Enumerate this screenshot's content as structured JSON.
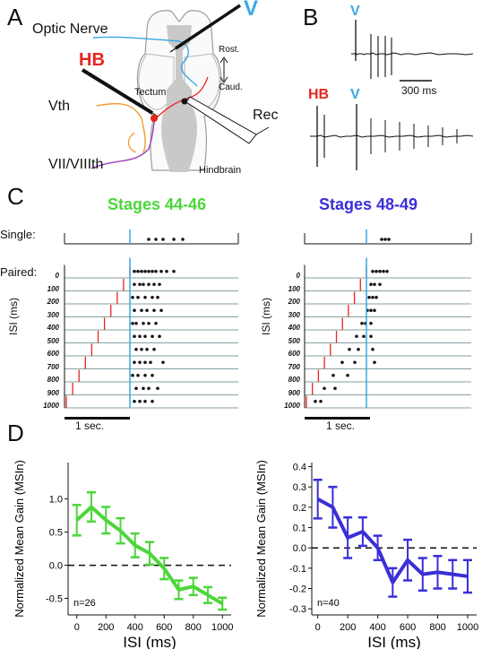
{
  "panels": {
    "A": {
      "letter": "A",
      "labels": {
        "optic_nerve": "Optic Nerve",
        "v": "V",
        "hb": "HB",
        "rost": "Rost.",
        "caud": "Caud.",
        "tectum": "Tectum",
        "vth": "Vth",
        "rec": "Rec",
        "vii_viii": "VII/VIIIth",
        "hindbrain": "Hindbrain"
      }
    },
    "B": {
      "letter": "B",
      "labels": {
        "v_top": "V",
        "hb": "HB",
        "v_bottom": "V",
        "scale": "300 ms"
      }
    },
    "C": {
      "letter": "C",
      "single_label": "Single:",
      "paired_label": "Paired:",
      "isi_axis_label": "ISI (ms)",
      "scale_label": "1 sec.",
      "isi_rows": [
        "0",
        "100",
        "200",
        "300",
        "400",
        "500",
        "600",
        "700",
        "800",
        "900",
        "1000"
      ],
      "groups": [
        {
          "title": "Stages 44-46",
          "color": "#4cd63a"
        },
        {
          "title": "Stages 48-49",
          "color": "#3a2fd8"
        }
      ]
    },
    "D": {
      "letter": "D"
    }
  },
  "colors": {
    "hb_red": "#e8241d",
    "v_cyan": "#3aa6e6",
    "green": "#4cd63a",
    "purple": "#3a2fd8"
  },
  "chart_data": [
    {
      "type": "line",
      "title": "",
      "xlabel": "ISI (ms)",
      "ylabel": "Normalized Mean Gain (MSIn)",
      "annotation": "n=26",
      "x": [
        0,
        100,
        200,
        300,
        400,
        500,
        600,
        700,
        800,
        900,
        1000
      ],
      "xticks": [
        "0",
        "200",
        "400",
        "600",
        "800",
        "1000"
      ],
      "yticks": [
        "-0.5",
        "0.0",
        "0.5",
        "1.0"
      ],
      "xlim": [
        -60,
        1060
      ],
      "ylim": [
        -0.75,
        1.55
      ],
      "series": [
        {
          "color": "#4cd63a",
          "values": [
            0.68,
            0.88,
            0.68,
            0.52,
            0.3,
            0.18,
            -0.05,
            -0.37,
            -0.32,
            -0.45,
            -0.58
          ],
          "err": [
            0.23,
            0.22,
            0.2,
            0.19,
            0.18,
            0.17,
            0.16,
            0.14,
            0.13,
            0.12,
            0.09
          ]
        }
      ]
    },
    {
      "type": "line",
      "title": "",
      "xlabel": "ISI (ms)",
      "ylabel": "Normalized Mean Gain (MSIn)",
      "annotation": "n=40",
      "x": [
        0,
        100,
        200,
        300,
        400,
        500,
        600,
        700,
        800,
        900,
        1000
      ],
      "xticks": [
        "0",
        "200",
        "400",
        "600",
        "800",
        "1000"
      ],
      "yticks": [
        "-0.3",
        "-0.2",
        "-0.1",
        "0.0",
        "0.1",
        "0.2",
        "0.3",
        "0.4"
      ],
      "xlim": [
        -40,
        1060
      ],
      "ylim": [
        -0.33,
        0.42
      ],
      "series": [
        {
          "color": "#3a2fd8",
          "values": [
            0.24,
            0.2,
            0.05,
            0.08,
            0.0,
            -0.17,
            -0.06,
            -0.13,
            -0.12,
            -0.13,
            -0.14
          ],
          "err": [
            0.095,
            0.1,
            0.1,
            0.07,
            0.06,
            0.07,
            0.1,
            0.08,
            0.08,
            0.07,
            0.08
          ]
        }
      ]
    }
  ]
}
